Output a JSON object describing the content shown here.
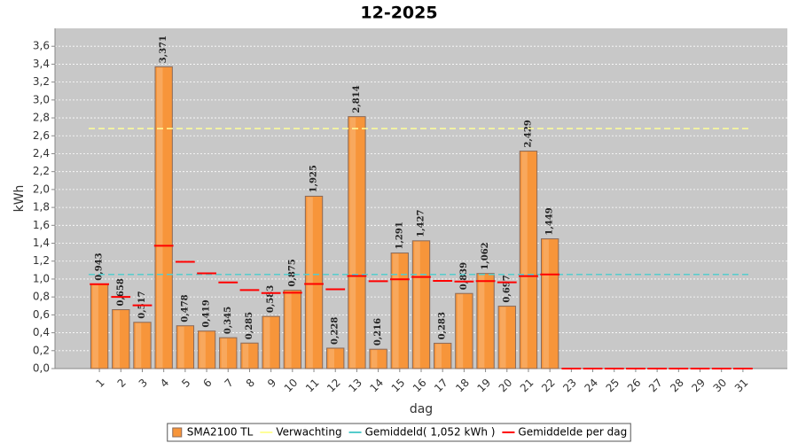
{
  "chart_data": {
    "type": "bar",
    "title": "12-2025",
    "x_label": "dag",
    "y_label": "kWh",
    "categories": [
      "1",
      "2",
      "3",
      "4",
      "5",
      "6",
      "7",
      "8",
      "9",
      "10",
      "11",
      "12",
      "13",
      "14",
      "15",
      "16",
      "17",
      "18",
      "19",
      "20",
      "21",
      "22",
      "23",
      "24",
      "25",
      "26",
      "27",
      "28",
      "29",
      "30",
      "31"
    ],
    "ylim": [
      0,
      3.8
    ],
    "yticks": [
      {
        "value": 0,
        "label": "0,0"
      },
      {
        "value": 0.2,
        "label": "0,2"
      },
      {
        "value": 0.4,
        "label": "0,4"
      },
      {
        "value": 0.6,
        "label": "0,6"
      },
      {
        "value": 0.8,
        "label": "0,8"
      },
      {
        "value": 1,
        "label": "1,0"
      },
      {
        "value": 1.2,
        "label": "1,2"
      },
      {
        "value": 1.4,
        "label": "1,4"
      },
      {
        "value": 1.6,
        "label": "1,6"
      },
      {
        "value": 1.8,
        "label": "1,8"
      },
      {
        "value": 2,
        "label": "2,0"
      },
      {
        "value": 2.2,
        "label": "2,2"
      },
      {
        "value": 2.4,
        "label": "2,4"
      },
      {
        "value": 2.6,
        "label": "2,6"
      },
      {
        "value": 2.8,
        "label": "2,8"
      },
      {
        "value": 3,
        "label": "3,0"
      },
      {
        "value": 3.2,
        "label": "3,2"
      },
      {
        "value": 3.4,
        "label": "3,4"
      },
      {
        "value": 3.6,
        "label": "3,6"
      }
    ],
    "grid": true,
    "series": [
      {
        "name": "SMA2100 TL",
        "kind": "bar",
        "color": "#f7953a",
        "values": [
          0.943,
          0.658,
          0.517,
          3.371,
          0.478,
          0.419,
          0.345,
          0.285,
          0.583,
          0.875,
          1.925,
          0.228,
          2.814,
          0.216,
          1.291,
          1.427,
          0.283,
          0.839,
          1.062,
          0.697,
          2.429,
          1.449,
          null,
          null,
          null,
          null,
          null,
          null,
          null,
          null,
          null
        ],
        "value_labels": [
          "0,943",
          "0,658",
          "0,517",
          "3,371",
          "0,478",
          "0,419",
          "0,345",
          "0,285",
          "0,583",
          "0,875",
          "1,925",
          "0,228",
          "2,814",
          "0,216",
          "1,291",
          "1,427",
          "0,283",
          "0,839",
          "1,062",
          "0,697",
          "2,429",
          "1,449",
          null,
          null,
          null,
          null,
          null,
          null,
          null,
          null,
          null
        ]
      },
      {
        "name": "Verwachting",
        "kind": "hline",
        "color": "#ffff99",
        "value": 2.68
      },
      {
        "name": "Gemiddeld( 1,052 kWh )",
        "kind": "hline",
        "color": "#55cccc",
        "value": 1.052
      },
      {
        "name": "Gemiddelde per dag",
        "kind": "marker",
        "color": "#ff0000",
        "values": [
          0.943,
          0.8005,
          0.706,
          1.372,
          1.193,
          1.064,
          0.962,
          0.877,
          0.844,
          0.847,
          0.945,
          0.886,
          1.034,
          0.976,
          0.997,
          1.023,
          0.98,
          0.972,
          0.977,
          0.963,
          1.033,
          1.052,
          0,
          0,
          0,
          0,
          0,
          0,
          0,
          0,
          0
        ]
      }
    ]
  }
}
